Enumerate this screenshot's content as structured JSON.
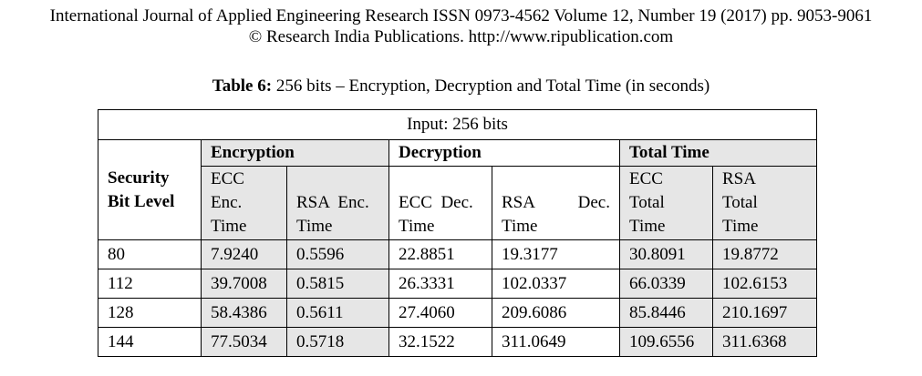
{
  "header": {
    "line1": "International Journal of Applied Engineering Research ISSN 0973-4562 Volume 12, Number 19 (2017) pp. 9053-9061",
    "line2": "© Research India Publications.  http://www.ripublication.com"
  },
  "caption": {
    "label": "Table 6:",
    "text": " 256 bits – Encryption, Decryption and Total Time (in seconds)"
  },
  "table": {
    "input_row": "Input: 256 bits",
    "groups": {
      "encryption": "Encryption",
      "decryption": "Decryption",
      "total": "Total Time"
    },
    "security_header": {
      "line1": "Security",
      "line2": "Bit Level"
    },
    "subheaders": {
      "ecc_enc": [
        "ECC",
        "Enc.",
        "Time"
      ],
      "rsa_enc": [
        "RSA  Enc.",
        "Time"
      ],
      "ecc_dec": [
        "ECC  Dec.",
        "Time"
      ],
      "rsa_dec": [
        "RSA",
        "Dec.",
        "Time"
      ],
      "ecc_total": [
        "ECC",
        "Total",
        "Time"
      ],
      "rsa_total": [
        "RSA",
        "Total",
        "Time"
      ]
    },
    "rows": [
      {
        "bits": "80",
        "ecc_enc": "7.9240",
        "rsa_enc": "0.5596",
        "ecc_dec": "22.8851",
        "rsa_dec": "19.3177",
        "ecc_total": "30.8091",
        "rsa_total": "19.8772"
      },
      {
        "bits": "112",
        "ecc_enc": "39.7008",
        "rsa_enc": "0.5815",
        "ecc_dec": "26.3331",
        "rsa_dec": "102.0337",
        "ecc_total": "66.0339",
        "rsa_total": "102.6153"
      },
      {
        "bits": "128",
        "ecc_enc": "58.4386",
        "rsa_enc": "0.5611",
        "ecc_dec": "27.4060",
        "rsa_dec": "209.6086",
        "ecc_total": "85.8446",
        "rsa_total": "210.1697"
      },
      {
        "bits": "144",
        "ecc_enc": "77.5034",
        "rsa_enc": "0.5718",
        "ecc_dec": "32.1522",
        "rsa_dec": "311.0649",
        "ecc_total": "109.6556",
        "rsa_total": "311.6368"
      }
    ]
  },
  "colors": {
    "shade": "#e6e6e6",
    "border": "#000000",
    "text": "#000000"
  }
}
